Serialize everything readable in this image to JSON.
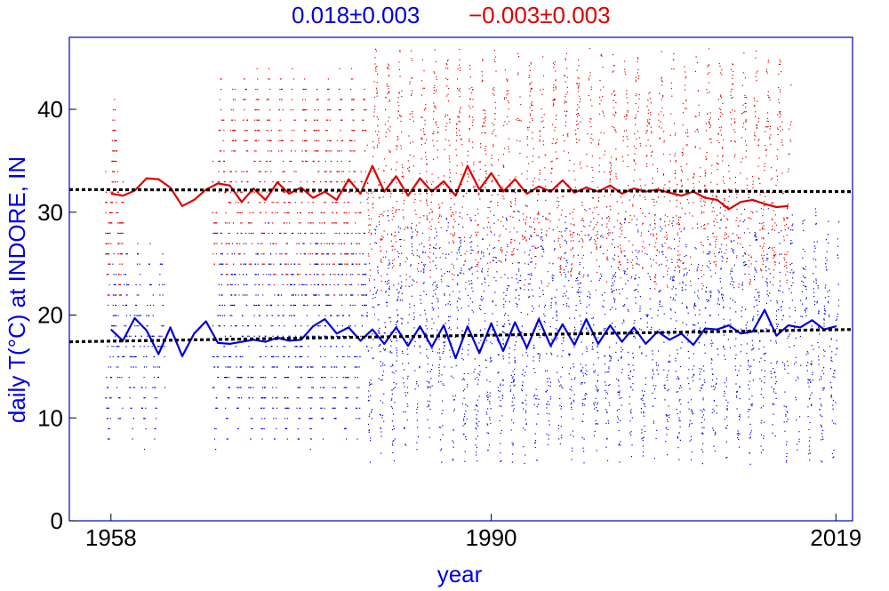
{
  "header": {
    "left_stat": "0.018±0.003",
    "right_stat": "−0.003±0.003"
  },
  "chart_data": {
    "type": "scatter",
    "title": "",
    "xlabel": "year",
    "ylabel": "daily T(°C) at INDORE, IN",
    "xlim": [
      1954.5,
      2020.4
    ],
    "ylim": [
      0,
      47
    ],
    "x_ticks": [
      1958,
      1990,
      2019
    ],
    "y_ticks": [
      0,
      10,
      20,
      30,
      40
    ],
    "grid": false,
    "colors": {
      "min": "#0000dd",
      "max": "#dd0000",
      "trend": "#000000",
      "frame": "#0000cc"
    },
    "series": [
      {
        "role": "daily minimum",
        "color": "#0000dd",
        "trend_annotation": "0.018±0.003",
        "trend_line": {
          "x": [
            1954.5,
            2020.4
          ],
          "y": [
            17.4,
            18.6
          ]
        },
        "smoothed": {
          "x": [
            1958,
            1959,
            1960,
            1961,
            1962,
            1963,
            1964,
            1965,
            1966,
            1967,
            1968,
            1969,
            1970,
            1971,
            1972,
            1973,
            1974,
            1975,
            1976,
            1977,
            1978,
            1979,
            1980,
            1981,
            1982,
            1983,
            1984,
            1985,
            1986,
            1987,
            1988,
            1989,
            1990,
            1991,
            1992,
            1993,
            1994,
            1995,
            1996,
            1997,
            1998,
            1999,
            2000,
            2001,
            2002,
            2003,
            2004,
            2005,
            2006,
            2007,
            2008,
            2009,
            2010,
            2011,
            2012,
            2013,
            2014,
            2015,
            2016,
            2017,
            2018,
            2019
          ],
          "y": [
            18.6,
            17.5,
            19.7,
            18.5,
            16.2,
            18.8,
            16.0,
            18.2,
            19.4,
            17.3,
            17.2,
            17.4,
            17.6,
            17.4,
            17.8,
            17.5,
            17.6,
            18.9,
            19.6,
            18.2,
            18.8,
            17.5,
            18.6,
            17.2,
            18.8,
            17.0,
            18.9,
            16.9,
            19.0,
            15.8,
            18.9,
            16.3,
            19.2,
            16.5,
            19.3,
            16.8,
            19.6,
            17.0,
            19.1,
            17.1,
            19.6,
            17.2,
            19.0,
            17.4,
            18.8,
            17.2,
            18.4,
            17.6,
            18.2,
            17.1,
            18.7,
            18.6,
            19.0,
            18.2,
            18.4,
            20.5,
            18.0,
            19.0,
            18.8,
            19.5,
            18.6,
            18.9
          ]
        },
        "points_note": "daily points, approx. 2–30 °C"
      },
      {
        "role": "daily maximum",
        "color": "#dd0000",
        "trend_annotation": "−0.003±0.003",
        "trend_line": {
          "x": [
            1954.5,
            2020.4
          ],
          "y": [
            32.2,
            32.0
          ]
        },
        "smoothed": {
          "x": [
            1958,
            1959,
            1960,
            1961,
            1962,
            1963,
            1964,
            1965,
            1966,
            1967,
            1968,
            1969,
            1970,
            1971,
            1972,
            1973,
            1974,
            1975,
            1976,
            1977,
            1978,
            1979,
            1980,
            1981,
            1982,
            1983,
            1984,
            1985,
            1986,
            1987,
            1988,
            1989,
            1990,
            1991,
            1992,
            1993,
            1994,
            1995,
            1996,
            1997,
            1998,
            1999,
            2000,
            2001,
            2002,
            2003,
            2004,
            2005,
            2006,
            2007,
            2008,
            2009,
            2010,
            2011,
            2012,
            2013,
            2014,
            2015
          ],
          "y": [
            31.8,
            31.6,
            32.1,
            33.3,
            33.2,
            32.4,
            30.6,
            31.2,
            32.2,
            32.8,
            32.6,
            31.0,
            32.3,
            31.2,
            32.9,
            31.8,
            32.4,
            31.4,
            32.0,
            31.2,
            33.2,
            31.8,
            34.5,
            32.0,
            33.5,
            31.6,
            33.3,
            32.0,
            33.0,
            31.6,
            34.5,
            32.2,
            33.8,
            32.0,
            33.2,
            31.8,
            32.5,
            32.0,
            33.1,
            31.9,
            32.4,
            32.0,
            32.6,
            31.8,
            32.3,
            32.0,
            32.2,
            31.9,
            31.6,
            32.0,
            31.4,
            31.2,
            30.3,
            31.0,
            31.2,
            30.8,
            30.5,
            30.6
          ]
        },
        "points_note": "daily points, approx. 25–45 °C"
      }
    ]
  }
}
